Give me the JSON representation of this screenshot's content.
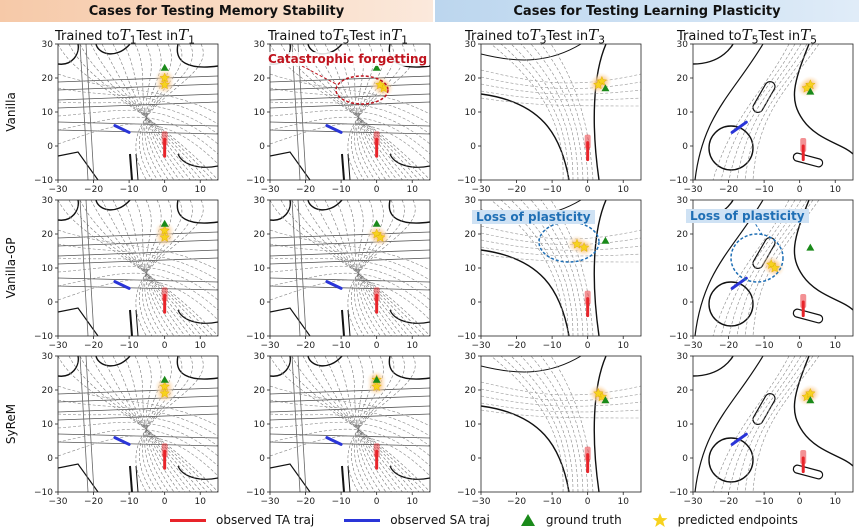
{
  "banners": {
    "left": "Cases for Testing Memory Stability",
    "right": "Cases for Testing Learning Plasticity"
  },
  "column_titles": [
    {
      "prefix": "Trained to",
      "train_sym": "T",
      "train_sub": "1",
      "middle": "Test in",
      "test_sym": "T",
      "test_sub": "1"
    },
    {
      "prefix": "Trained to",
      "train_sym": "T",
      "train_sub": "5",
      "middle": "Test in",
      "test_sym": "T",
      "test_sub": "1"
    },
    {
      "prefix": "Trained to",
      "train_sym": "T",
      "train_sub": "3",
      "middle": "Test in",
      "test_sym": "T",
      "test_sub": "3"
    },
    {
      "prefix": "Trained to",
      "train_sym": "T",
      "train_sub": "5",
      "middle": "Test in",
      "test_sym": "T",
      "test_sub": "5"
    }
  ],
  "row_labels": [
    "Vanilla",
    "Vanilla-GP",
    "SyReM"
  ],
  "annotations": {
    "catastrophic": "Catastrophic forgetting",
    "loss1": "Loss of plasticity",
    "loss2": "Loss of plasticity"
  },
  "axes": {
    "x_ticks": [
      "−30",
      "−20",
      "−10",
      "0",
      "10"
    ],
    "y_ticks": [
      "30",
      "20",
      "10",
      "0",
      "−10"
    ],
    "xlim": [
      -30,
      15
    ],
    "ylim": [
      -10,
      30
    ]
  },
  "legend": {
    "ta": "observed TA traj",
    "sa": "observed SA traj",
    "gt": "ground truth",
    "pred": "predicted endpoints"
  },
  "colors": {
    "ta": "#e8242a",
    "sa": "#2a35d8",
    "gt": "#1a8a1a",
    "pred": "#f7d21e",
    "annotation_red": "#c0141e",
    "annotation_blue": "#1f6fb5"
  },
  "chart_data": {
    "type": "scatter",
    "xlim": [
      -30,
      15
    ],
    "ylim": [
      -10,
      30
    ],
    "panels": [
      {
        "row": "Vanilla",
        "col": 1,
        "ta": [
          [
            0,
            -3
          ],
          [
            0,
            2
          ]
        ],
        "sa": [
          [
            -14,
            6
          ],
          [
            -10,
            4
          ]
        ],
        "gt": [
          0,
          23
        ],
        "pred": [
          [
            0,
            20
          ],
          [
            0,
            18
          ]
        ]
      },
      {
        "row": "Vanilla",
        "col": 2,
        "ta": [
          [
            0,
            -3
          ],
          [
            0,
            2
          ]
        ],
        "sa": [
          [
            -14,
            6
          ],
          [
            -10,
            4
          ]
        ],
        "gt": [
          0,
          23
        ],
        "pred": [
          [
            2,
            17
          ],
          [
            1,
            18
          ]
        ]
      },
      {
        "row": "Vanilla",
        "col": 3,
        "ta": [
          [
            0,
            -4
          ],
          [
            0,
            1
          ]
        ],
        "sa": [],
        "gt": [
          5,
          17
        ],
        "pred": [
          [
            4,
            19
          ],
          [
            3,
            18
          ]
        ]
      },
      {
        "row": "Vanilla",
        "col": 4,
        "ta": [
          [
            1,
            -4
          ],
          [
            1,
            0
          ]
        ],
        "sa": [
          [
            -19,
            4
          ],
          [
            -15,
            7
          ]
        ],
        "gt": [
          3,
          16
        ],
        "pred": [
          [
            3,
            18
          ],
          [
            2,
            17
          ]
        ]
      },
      {
        "row": "Vanilla-GP",
        "col": 1,
        "ta": [
          [
            0,
            -3
          ],
          [
            0,
            2
          ]
        ],
        "sa": [
          [
            -14,
            6
          ],
          [
            -10,
            4
          ]
        ],
        "gt": [
          0,
          23
        ],
        "pred": [
          [
            0,
            21
          ],
          [
            0,
            19
          ]
        ]
      },
      {
        "row": "Vanilla-GP",
        "col": 2,
        "ta": [
          [
            0,
            -3
          ],
          [
            0,
            2
          ]
        ],
        "sa": [
          [
            -14,
            6
          ],
          [
            -10,
            4
          ]
        ],
        "gt": [
          0,
          23
        ],
        "pred": [
          [
            0,
            20
          ],
          [
            1,
            19
          ]
        ]
      },
      {
        "row": "Vanilla-GP",
        "col": 3,
        "ta": [
          [
            0,
            -4
          ],
          [
            0,
            1
          ]
        ],
        "sa": [],
        "gt": [
          5,
          18
        ],
        "pred": [
          [
            -3,
            17
          ],
          [
            -1,
            16
          ]
        ]
      },
      {
        "row": "Vanilla-GP",
        "col": 4,
        "ta": [
          [
            1,
            -4
          ],
          [
            1,
            0
          ]
        ],
        "sa": [
          [
            -19,
            4
          ],
          [
            -15,
            7
          ]
        ],
        "gt": [
          3,
          16
        ],
        "pred": [
          [
            -8,
            11
          ],
          [
            -7,
            10
          ]
        ]
      },
      {
        "row": "SyReM",
        "col": 1,
        "ta": [
          [
            0,
            -3
          ],
          [
            0,
            2
          ]
        ],
        "sa": [
          [
            -14,
            6
          ],
          [
            -10,
            4
          ]
        ],
        "gt": [
          0,
          23
        ],
        "pred": [
          [
            0,
            21
          ],
          [
            0,
            19
          ]
        ]
      },
      {
        "row": "SyReM",
        "col": 2,
        "ta": [
          [
            0,
            -3
          ],
          [
            0,
            2
          ]
        ],
        "sa": [
          [
            -14,
            6
          ],
          [
            -10,
            4
          ]
        ],
        "gt": [
          0,
          23
        ],
        "pred": [
          [
            0,
            23
          ],
          [
            0,
            21
          ]
        ]
      },
      {
        "row": "SyReM",
        "col": 3,
        "ta": [
          [
            0,
            -4
          ],
          [
            0,
            1
          ]
        ],
        "sa": [],
        "gt": [
          5,
          17
        ],
        "pred": [
          [
            4,
            18
          ],
          [
            3,
            19
          ]
        ]
      },
      {
        "row": "SyReM",
        "col": 4,
        "ta": [
          [
            1,
            -4
          ],
          [
            1,
            0
          ]
        ],
        "sa": [
          [
            -19,
            4
          ],
          [
            -15,
            7
          ]
        ],
        "gt": [
          3,
          17
        ],
        "pred": [
          [
            2,
            18
          ],
          [
            3,
            19
          ]
        ]
      }
    ]
  }
}
